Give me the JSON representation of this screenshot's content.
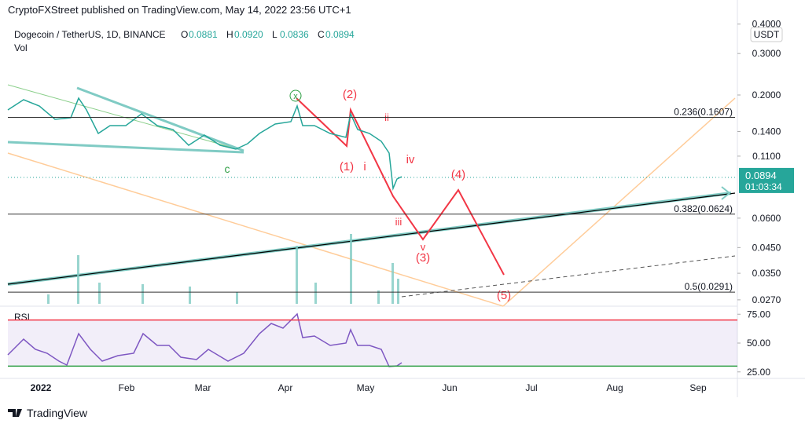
{
  "header": {
    "publisher": "CryptoFXStreet published on TradingView.com, May 14, 2022 23:56 UTC+1",
    "symbol": "Dogecoin / TetherUS, 1D, BINANCE",
    "ohlc": [
      {
        "key": "O",
        "value": "0.0881"
      },
      {
        "key": "H",
        "value": "0.0920"
      },
      {
        "key": "L",
        "value": "0.0836"
      },
      {
        "key": "C",
        "value": "0.0894"
      }
    ],
    "volume_label": "Vol",
    "currency": "USDT"
  },
  "price_axis": {
    "scale": "log",
    "ticks": [
      {
        "value": 0.4,
        "label": "0.4000"
      },
      {
        "value": 0.3,
        "label": "0.3000"
      },
      {
        "value": 0.2,
        "label": "0.2000"
      },
      {
        "value": 0.14,
        "label": "0.1400"
      },
      {
        "value": 0.11,
        "label": "0.1100"
      },
      {
        "value": 0.06,
        "label": "0.0600"
      },
      {
        "value": 0.045,
        "label": "0.0450"
      },
      {
        "value": 0.035,
        "label": "0.0350"
      },
      {
        "value": 0.027,
        "label": "0.0270"
      }
    ]
  },
  "last_price": {
    "value": 0.0894,
    "label": "0.0894",
    "countdown": "01:03:34",
    "color": "#26a69a"
  },
  "fib_levels": [
    {
      "value": 0.1607,
      "label": "0.236(0.1607)"
    },
    {
      "value": 0.0624,
      "label": "0.382(0.0624)"
    },
    {
      "value": 0.0291,
      "label": "0.5(0.0291)"
    }
  ],
  "wave_labels": [
    "x",
    "(2)",
    "ii",
    "(1)",
    "i",
    "iv",
    "(4)",
    "iii",
    "v",
    "(3)",
    "(5)",
    "c"
  ],
  "rsi": {
    "title": "RSI",
    "ticks": [
      {
        "value": 75,
        "label": "75.00"
      },
      {
        "value": 50,
        "label": "50.00"
      },
      {
        "value": 25,
        "label": "25.00"
      }
    ],
    "upper": 70,
    "lower": 30
  },
  "time_axis": [
    "2022",
    "Feb",
    "Mar",
    "Apr",
    "May",
    "Jun",
    "Jul",
    "Aug",
    "Sep"
  ],
  "footer": "TradingView"
}
